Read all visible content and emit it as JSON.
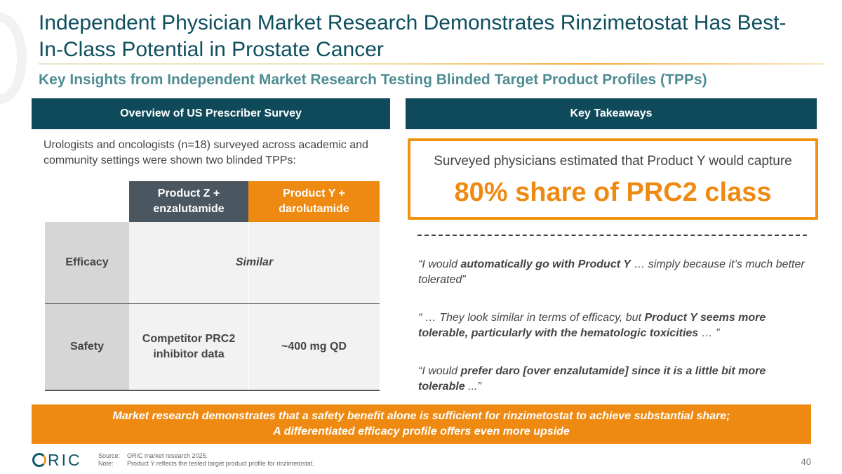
{
  "title": "Independent Physician Market Research Demonstrates Rinzimetostat Has Best-In-Class Potential in Prostate Cancer",
  "subtitle": "Key Insights from Independent Market Research Testing Blinded Target Product Profiles (TPPs)",
  "left_panel": {
    "header": "Overview of US Prescriber Survey",
    "intro": "Urologists and oncologists (n=18) surveyed across academic and community settings were shown two blinded TPPs:",
    "table": {
      "columns": [
        {
          "label_line1": "Product Z +",
          "label_line2": "enzalutamide"
        },
        {
          "label_line1": "Product Y +",
          "label_line2": "darolutamide"
        }
      ],
      "rows": [
        {
          "label": "Efficacy",
          "merged_value": "Similar"
        },
        {
          "label": "Safety",
          "z_value_line1": "Competitor PRC2",
          "z_value_line2": "inhibitor data",
          "y_value": "~400 mg QD"
        }
      ]
    }
  },
  "right_panel": {
    "header": "Key Takeaways",
    "highlight_text": "Surveyed physicians estimated that Product Y would capture",
    "highlight_big": "80% share of PRC2 class",
    "quotes": [
      {
        "pre": "“I would ",
        "bold": "automatically go with Product Y",
        "post": " … simply because it’s much better tolerated”"
      },
      {
        "pre": "“ … They look similar in terms of efficacy, but ",
        "bold": "Product Y seems more tolerable, particularly with the hematologic toxicities",
        "post": " … ”"
      },
      {
        "pre": "“I would ",
        "bold": "prefer daro [over enzalutamide] since it is a little bit more tolerable",
        "post": " ...”"
      }
    ]
  },
  "banner": {
    "line1": "Market research demonstrates that a safety benefit alone is sufficient for rinzimetostat to achieve substantial share;",
    "line2": "A differentiated efficacy profile offers even more upside"
  },
  "footer": {
    "logo_text": "RIC",
    "logo_letter": "O",
    "source_key": "Source:",
    "source_value": "ORIC market research 2025.",
    "note_key": "Note:",
    "note_value": "Product Y reflects the tested target product profile for rinzimetostat.",
    "page_number": "40"
  },
  "colors": {
    "teal_dark": "#0e4a5a",
    "teal_text": "#0e4f5e",
    "subtitle_teal": "#4f8d93",
    "orange": "#ee8a12",
    "slate": "#4a5660"
  }
}
